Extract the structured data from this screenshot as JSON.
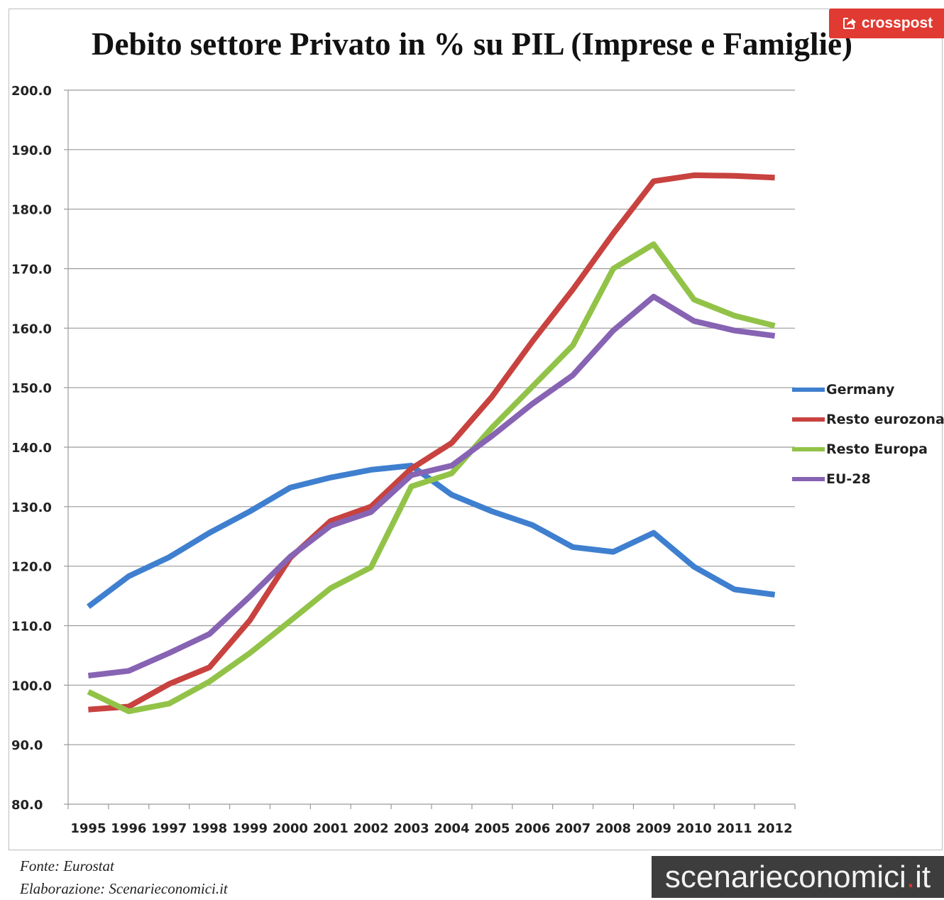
{
  "chart_data": {
    "type": "line",
    "title": "Debito settore Privato in % su PIL (Imprese e Famiglie)",
    "xlabel": "",
    "ylabel": "",
    "x": [
      "1995",
      "1996",
      "1997",
      "1998",
      "1999",
      "2000",
      "2001",
      "2002",
      "2003",
      "2004",
      "2005",
      "2006",
      "2007",
      "2008",
      "2009",
      "2010",
      "2011",
      "2012"
    ],
    "ylim": [
      80,
      200
    ],
    "yticks": [
      "200.0",
      "190.0",
      "180.0",
      "170.0",
      "160.0",
      "150.0",
      "140.0",
      "130.0",
      "120.0",
      "110.0",
      "100.0",
      "90.0",
      "80.0"
    ],
    "grid": true,
    "legend_position": "right",
    "series": [
      {
        "name": "Germany",
        "color": "#3f7fcf",
        "values": [
          113.2,
          118.3,
          121.5,
          125.6,
          129.2,
          133.2,
          134.9,
          136.2,
          136.9,
          132.0,
          129.2,
          126.9,
          123.2,
          122.4,
          125.6,
          119.9,
          116.1,
          115.2
        ]
      },
      {
        "name": "Resto eurozona",
        "color": "#c8423f",
        "values": [
          95.9,
          96.4,
          100.2,
          103.0,
          110.9,
          121.4,
          127.6,
          130.0,
          136.4,
          140.7,
          148.5,
          157.8,
          166.5,
          175.9,
          184.7,
          185.7,
          185.6,
          185.3
        ]
      },
      {
        "name": "Resto Europa",
        "color": "#92c348",
        "values": [
          98.9,
          95.6,
          96.9,
          100.6,
          105.4,
          110.8,
          116.3,
          119.8,
          133.4,
          135.6,
          143.3,
          150.2,
          157.1,
          170.0,
          174.1,
          164.8,
          162.1,
          160.4
        ]
      },
      {
        "name": "EU-28",
        "color": "#8763b3",
        "values": [
          101.6,
          102.4,
          105.4,
          108.6,
          114.9,
          121.6,
          126.8,
          129.1,
          135.3,
          136.9,
          141.9,
          147.3,
          152.1,
          159.6,
          165.3,
          161.2,
          159.6,
          158.7
        ]
      }
    ]
  },
  "badge": {
    "label": "crosspost",
    "icon": "share-arrow-icon",
    "color": "#e03a32"
  },
  "footer": {
    "source": "Fonte: Eurostat",
    "elaboration": "Elaborazione: Scenarieconomici.it"
  },
  "brand": {
    "name": "scenarieconomici",
    "dot": ".",
    "tld": "it"
  }
}
